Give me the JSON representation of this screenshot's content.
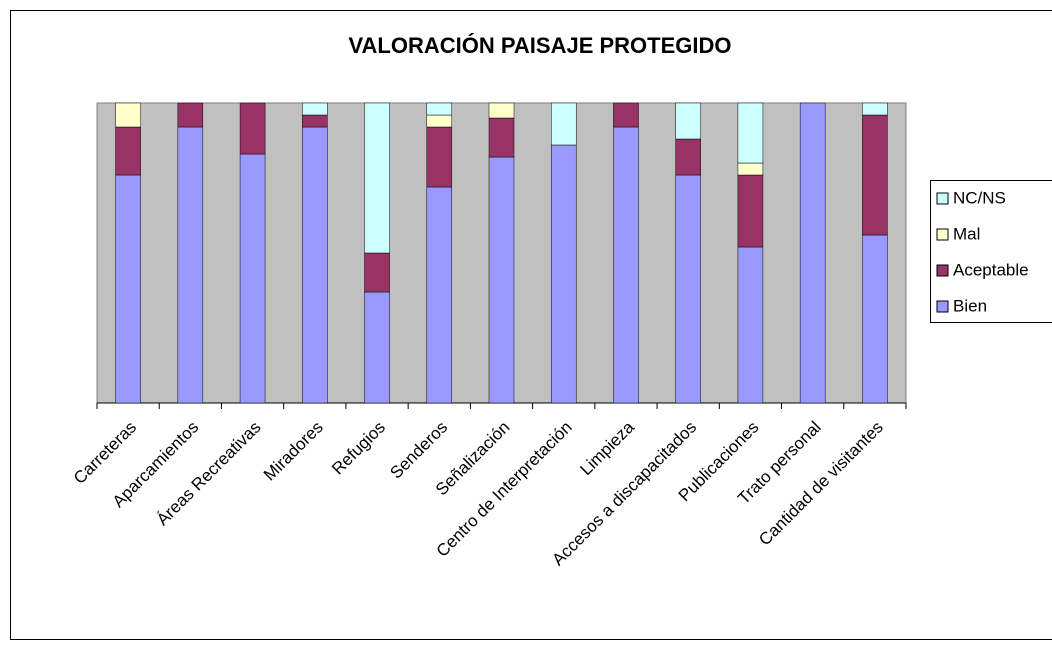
{
  "chart_data": {
    "type": "stacked_bar_100",
    "title": "VALORACIÓN PAISAJE PROTEGIDO",
    "categories": [
      "Carreteras",
      "Aparcamientos",
      "Áreas Recreativas",
      "Miradores",
      "Refugios",
      "Senderos",
      "Señalización",
      "Centro de Interpretación",
      "Limpieza",
      "Accesos a discapacitados",
      "Publicaciones",
      "Trato personal",
      "Cantidad de visitantes"
    ],
    "series": [
      {
        "name": "Bien",
        "color": "#9999ff",
        "values": [
          76,
          92,
          83,
          92,
          37,
          72,
          82,
          86,
          92,
          76,
          52,
          100,
          56
        ]
      },
      {
        "name": "Aceptable",
        "color": "#993366",
        "values": [
          16,
          8,
          17,
          4,
          13,
          20,
          13,
          0,
          8,
          12,
          24,
          0,
          40
        ]
      },
      {
        "name": "Mal",
        "color": "#ffffcc",
        "values": [
          8,
          0,
          0,
          0,
          0,
          4,
          5,
          0,
          0,
          0,
          4,
          0,
          0
        ]
      },
      {
        "name": "NC/NS",
        "color": "#ccffff",
        "values": [
          0,
          0,
          0,
          4,
          50,
          4,
          0,
          14,
          0,
          12,
          20,
          0,
          4
        ]
      }
    ],
    "ylim": [
      0,
      100
    ],
    "plot_background": "#c0c0c0",
    "legend": "right"
  }
}
